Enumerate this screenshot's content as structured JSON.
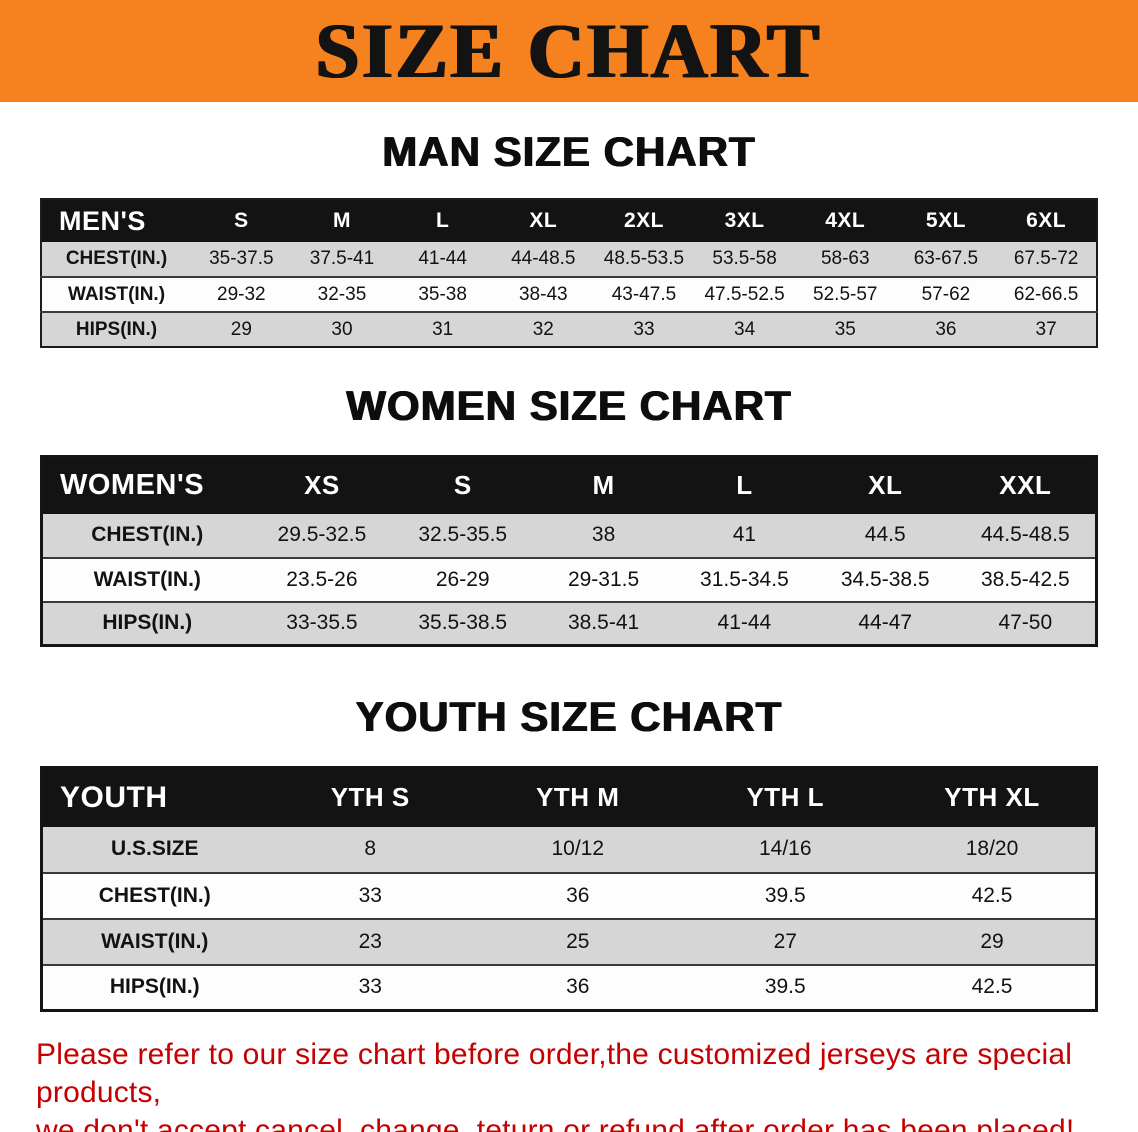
{
  "banner": {
    "title": "SIZE CHART"
  },
  "men": {
    "heading": "MAN SIZE CHART",
    "corner_label": "MEN'S",
    "sizes": [
      "S",
      "M",
      "L",
      "XL",
      "2XL",
      "3XL",
      "4XL",
      "5XL",
      "6XL"
    ],
    "rows": [
      {
        "label": "CHEST(IN.)",
        "values": [
          "35-37.5",
          "37.5-41",
          "41-44",
          "44-48.5",
          "48.5-53.5",
          "53.5-58",
          "58-63",
          "63-67.5",
          "67.5-72"
        ]
      },
      {
        "label": "WAIST(IN.)",
        "values": [
          "29-32",
          "32-35",
          "35-38",
          "38-43",
          "43-47.5",
          "47.5-52.5",
          "52.5-57",
          "57-62",
          "62-66.5"
        ]
      },
      {
        "label": "HIPS(IN.)",
        "values": [
          "29",
          "30",
          "31",
          "32",
          "33",
          "34",
          "35",
          "36",
          "37"
        ]
      }
    ]
  },
  "women": {
    "heading": "WOMEN SIZE CHART",
    "corner_label": "WOMEN'S",
    "sizes": [
      "XS",
      "S",
      "M",
      "L",
      "XL",
      "XXL"
    ],
    "rows": [
      {
        "label": "CHEST(IN.)",
        "values": [
          "29.5-32.5",
          "32.5-35.5",
          "38",
          "41",
          "44.5",
          "44.5-48.5"
        ]
      },
      {
        "label": "WAIST(IN.)",
        "values": [
          "23.5-26",
          "26-29",
          "29-31.5",
          "31.5-34.5",
          "34.5-38.5",
          "38.5-42.5"
        ]
      },
      {
        "label": "HIPS(IN.)",
        "values": [
          "33-35.5",
          "35.5-38.5",
          "38.5-41",
          "41-44",
          "44-47",
          "47-50"
        ]
      }
    ]
  },
  "youth": {
    "heading": "YOUTH SIZE CHART",
    "corner_label": "YOUTH",
    "sizes": [
      "YTH S",
      "YTH M",
      "YTH L",
      "YTH XL"
    ],
    "rows": [
      {
        "label": "U.S.SIZE",
        "values": [
          "8",
          "10/12",
          "14/16",
          "18/20"
        ]
      },
      {
        "label": "CHEST(IN.)",
        "values": [
          "33",
          "36",
          "39.5",
          "42.5"
        ]
      },
      {
        "label": "WAIST(IN.)",
        "values": [
          "23",
          "25",
          "27",
          "29"
        ]
      },
      {
        "label": "HIPS(IN.)",
        "values": [
          "33",
          "36",
          "39.5",
          "42.5"
        ]
      }
    ]
  },
  "disclaimer": {
    "line1": "Please refer to our size chart before order,the customized jerseys are special products,",
    "line2": "we don't accept cancel, change, teturn or refund after order has been placed!"
  },
  "colors": {
    "banner_orange": "#F5821E",
    "header_black": "#131313",
    "row_gray": "#D6D6D6",
    "disclaimer_red": "#C40000"
  }
}
